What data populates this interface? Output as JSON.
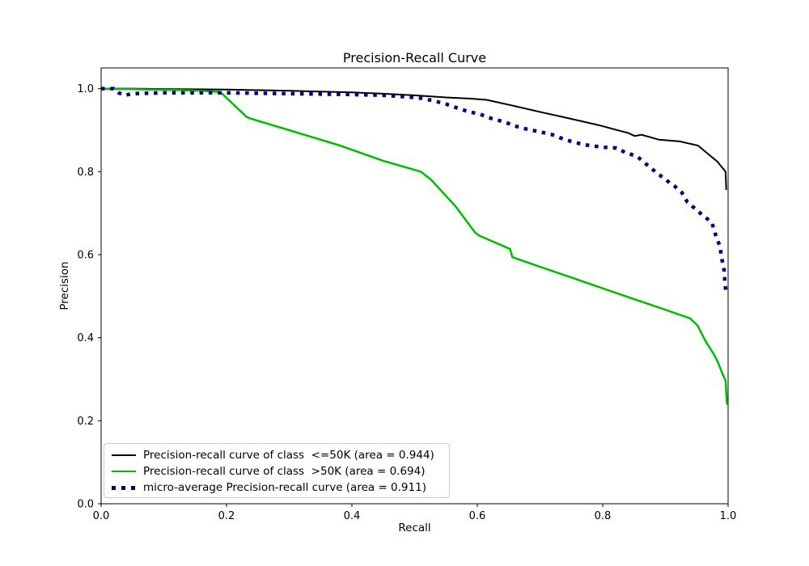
{
  "figure": {
    "background": "#ffffff"
  },
  "chart_data": {
    "type": "line",
    "title": "Precision-Recall Curve",
    "xlabel": "Recall",
    "ylabel": "Precision",
    "xlim": [
      0.0,
      1.0
    ],
    "ylim": [
      0.0,
      1.05
    ],
    "x_ticks": [
      "0.0",
      "0.2",
      "0.4",
      "0.6",
      "0.8",
      "1.0"
    ],
    "y_ticks": [
      "0.0",
      "0.2",
      "0.4",
      "0.6",
      "0.8",
      "1.0"
    ],
    "grid": false,
    "legend_position": "lower left",
    "series": [
      {
        "id": "class-le50k",
        "name": "Precision-recall curve of class  <=50K (area = 0.944)",
        "area": 0.944,
        "color": "#000000",
        "style": "solid",
        "line_width": 2,
        "points": [
          [
            0.0,
            1.0
          ],
          [
            0.05,
            1.0
          ],
          [
            0.1,
            0.999
          ],
          [
            0.2,
            0.998
          ],
          [
            0.3,
            0.995
          ],
          [
            0.4,
            0.991
          ],
          [
            0.45,
            0.988
          ],
          [
            0.5,
            0.984
          ],
          [
            0.55,
            0.979
          ],
          [
            0.59,
            0.976
          ],
          [
            0.615,
            0.973
          ],
          [
            0.66,
            0.958
          ],
          [
            0.7,
            0.944
          ],
          [
            0.742,
            0.93
          ],
          [
            0.794,
            0.912
          ],
          [
            0.841,
            0.893
          ],
          [
            0.851,
            0.886
          ],
          [
            0.862,
            0.889
          ],
          [
            0.89,
            0.877
          ],
          [
            0.923,
            0.873
          ],
          [
            0.952,
            0.863
          ],
          [
            0.983,
            0.824
          ],
          [
            0.996,
            0.8
          ],
          [
            0.997,
            0.756
          ]
        ]
      },
      {
        "id": "class-gt50k",
        "name": "Precision-recall curve of class  >50K (area = 0.694)",
        "area": 0.694,
        "color": "#00bc00",
        "style": "solid",
        "line_width": 2.5,
        "points": [
          [
            0.0,
            1.0
          ],
          [
            0.04,
            0.999
          ],
          [
            0.08,
            0.998
          ],
          [
            0.12,
            0.997
          ],
          [
            0.16,
            0.995
          ],
          [
            0.19,
            0.992
          ],
          [
            0.225,
            0.942
          ],
          [
            0.232,
            0.932
          ],
          [
            0.238,
            0.928
          ],
          [
            0.3,
            0.9
          ],
          [
            0.381,
            0.863
          ],
          [
            0.45,
            0.826
          ],
          [
            0.51,
            0.8
          ],
          [
            0.526,
            0.781
          ],
          [
            0.565,
            0.717
          ],
          [
            0.568,
            0.711
          ],
          [
            0.596,
            0.654
          ],
          [
            0.603,
            0.646
          ],
          [
            0.652,
            0.614
          ],
          [
            0.656,
            0.594
          ],
          [
            0.7,
            0.571
          ],
          [
            0.75,
            0.545
          ],
          [
            0.8,
            0.519
          ],
          [
            0.85,
            0.493
          ],
          [
            0.897,
            0.469
          ],
          [
            0.939,
            0.447
          ],
          [
            0.951,
            0.43
          ],
          [
            0.965,
            0.389
          ],
          [
            0.977,
            0.361
          ],
          [
            0.984,
            0.34
          ],
          [
            0.991,
            0.313
          ],
          [
            0.996,
            0.297
          ],
          [
            0.998,
            0.244
          ],
          [
            0.999,
            0.238
          ]
        ]
      },
      {
        "id": "micro-average",
        "name": "micro-average Precision-recall curve (area = 0.911)",
        "area": 0.911,
        "color": "#000080",
        "style": "dotted",
        "line_width": 4.5,
        "points": [
          [
            0.0,
            1.0
          ],
          [
            0.02,
            1.0
          ],
          [
            0.028,
            0.99
          ],
          [
            0.038,
            0.984
          ],
          [
            0.05,
            0.988
          ],
          [
            0.1,
            0.99
          ],
          [
            0.2,
            0.99
          ],
          [
            0.3,
            0.988
          ],
          [
            0.4,
            0.986
          ],
          [
            0.45,
            0.984
          ],
          [
            0.49,
            0.98
          ],
          [
            0.51,
            0.977
          ],
          [
            0.53,
            0.971
          ],
          [
            0.55,
            0.963
          ],
          [
            0.565,
            0.955
          ],
          [
            0.585,
            0.945
          ],
          [
            0.605,
            0.938
          ],
          [
            0.623,
            0.928
          ],
          [
            0.643,
            0.92
          ],
          [
            0.66,
            0.91
          ],
          [
            0.68,
            0.902
          ],
          [
            0.7,
            0.896
          ],
          [
            0.72,
            0.889
          ],
          [
            0.74,
            0.877
          ],
          [
            0.77,
            0.865
          ],
          [
            0.8,
            0.859
          ],
          [
            0.822,
            0.857
          ],
          [
            0.839,
            0.844
          ],
          [
            0.854,
            0.838
          ],
          [
            0.868,
            0.82
          ],
          [
            0.884,
            0.8
          ],
          [
            0.9,
            0.781
          ],
          [
            0.914,
            0.766
          ],
          [
            0.926,
            0.75
          ],
          [
            0.935,
            0.727
          ],
          [
            0.948,
            0.71
          ],
          [
            0.961,
            0.693
          ],
          [
            0.974,
            0.678
          ],
          [
            0.98,
            0.648
          ],
          [
            0.987,
            0.62
          ],
          [
            0.99,
            0.59
          ],
          [
            0.994,
            0.56
          ],
          [
            0.995,
            0.53
          ],
          [
            0.997,
            0.506
          ]
        ]
      }
    ]
  }
}
